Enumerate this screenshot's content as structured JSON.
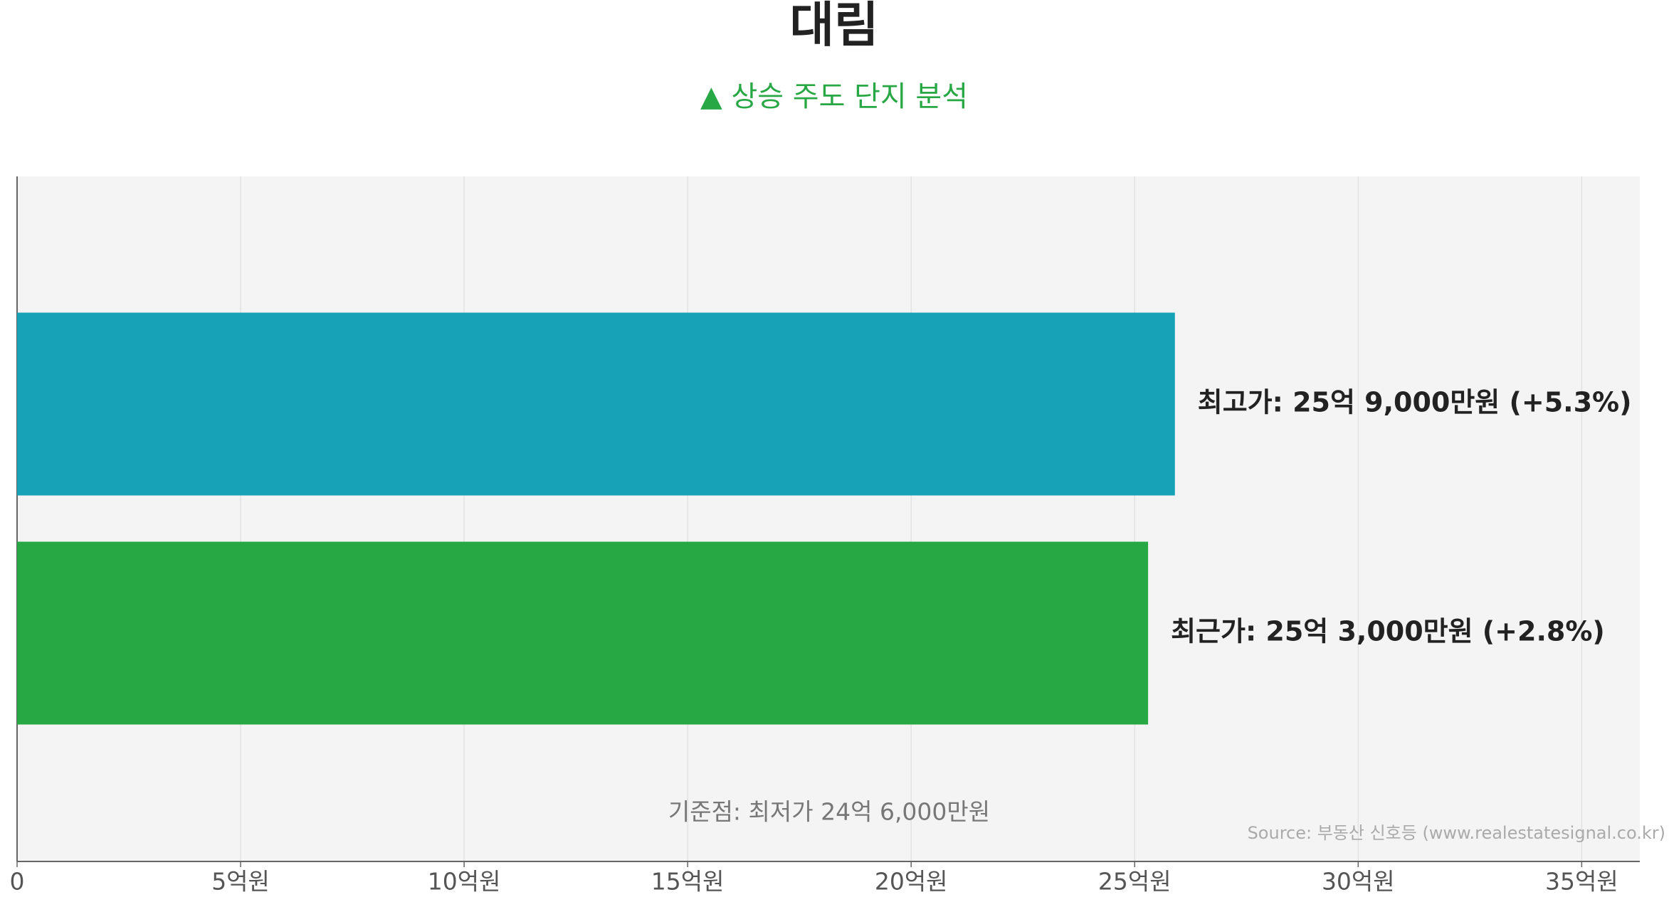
{
  "chart_data": {
    "type": "hbar",
    "title": "대림",
    "subtitle": "▲ 상승 주도 단지 분석",
    "categories": [
      null,
      null
    ],
    "values": [
      25.9,
      25.3
    ],
    "value_labels": [
      "최고가: 25억 9,000만원 (+5.3%)",
      "최근가: 25억 3,000만원 (+2.8%)"
    ],
    "colors": [
      "#17a2b8",
      "#28a745"
    ],
    "xlim": [
      0,
      36.3
    ],
    "xticks": [
      0,
      {
        "value": 5,
        "label": "5억원"
      },
      {
        "value": 10,
        "label": "10억원"
      },
      {
        "value": 15,
        "label": "15억원"
      },
      {
        "value": 20,
        "label": "20억원"
      },
      {
        "value": 25,
        "label": "25억원"
      },
      {
        "value": 30,
        "label": "30억원"
      },
      {
        "value": 35,
        "label": "35억원"
      }
    ],
    "grid": true,
    "annotation": "기준점: 최저가 24억 6,000만원",
    "source": "Source: 부동산 신호등 (www.realestatesignal.co.kr)"
  }
}
